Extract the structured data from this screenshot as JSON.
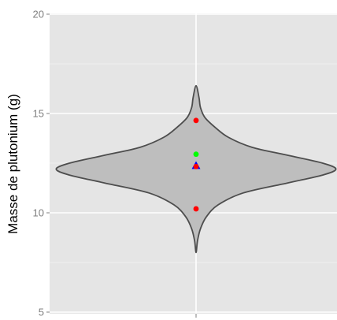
{
  "chart_data": {
    "type": "violin",
    "ylabel": "Masse de plutonium (g)",
    "xlabel": "",
    "ylim": [
      5,
      20
    ],
    "yticks": [
      5,
      10,
      15,
      20
    ],
    "y_tick_labels": [
      "5",
      "10",
      "15",
      "20"
    ],
    "grid": true,
    "violin": {
      "fill": "#bebebe",
      "stroke": "#4d4d4d",
      "y_min": 8.0,
      "y_max": 16.4,
      "density_profile": [
        {
          "y": 8.0,
          "half_width": 0.0
        },
        {
          "y": 8.6,
          "half_width": 0.01
        },
        {
          "y": 9.2,
          "half_width": 0.03
        },
        {
          "y": 9.8,
          "half_width": 0.07
        },
        {
          "y": 10.4,
          "half_width": 0.15
        },
        {
          "y": 11.0,
          "half_width": 0.32
        },
        {
          "y": 11.5,
          "half_width": 0.62
        },
        {
          "y": 11.9,
          "half_width": 0.86
        },
        {
          "y": 12.2,
          "half_width": 0.95
        },
        {
          "y": 12.5,
          "half_width": 0.86
        },
        {
          "y": 12.9,
          "half_width": 0.62
        },
        {
          "y": 13.3,
          "half_width": 0.38
        },
        {
          "y": 13.8,
          "half_width": 0.22
        },
        {
          "y": 14.3,
          "half_width": 0.13
        },
        {
          "y": 14.8,
          "half_width": 0.06
        },
        {
          "y": 15.3,
          "half_width": 0.03
        },
        {
          "y": 15.8,
          "half_width": 0.02
        },
        {
          "y": 16.4,
          "half_width": 0.0
        }
      ]
    },
    "points": [
      {
        "y": 14.65,
        "color": "#ff0000",
        "shape": "circle"
      },
      {
        "y": 12.95,
        "color": "#00ff00",
        "shape": "circle"
      },
      {
        "y": 12.38,
        "color": "#0000ff",
        "shape": "triangle"
      },
      {
        "y": 12.33,
        "color": "#ff0000",
        "shape": "circle"
      },
      {
        "y": 10.2,
        "color": "#ff0000",
        "shape": "circle"
      }
    ]
  }
}
